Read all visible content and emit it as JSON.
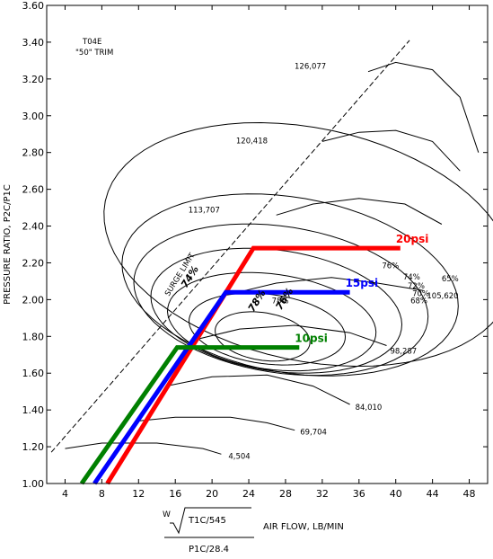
{
  "chart_data": {
    "type": "line",
    "title": "T04E",
    "subtitle": "\"50\" TRIM",
    "ylabel": "PRESSURE RATIO, P2C/P1C",
    "xlabel": "AIR FLOW, LB/MIN",
    "xlabel_formula": {
      "w": "W",
      "numerator": "T1C/545",
      "denominator": "P1C/28.4"
    },
    "xlim": [
      2,
      50
    ],
    "ylim": [
      1.0,
      3.6
    ],
    "x_ticks": [
      "4",
      "8",
      "12",
      "16",
      "20",
      "24",
      "28",
      "32",
      "36",
      "40",
      "44",
      "48"
    ],
    "y_ticks": [
      "1.00",
      "1.20",
      "1.40",
      "1.60",
      "1.80",
      "2.00",
      "2.20",
      "2.40",
      "2.60",
      "2.80",
      "3.00",
      "3.20",
      "3.40",
      "3.60"
    ],
    "surge_limit_label": "SURGE LIMIT",
    "surge_line": [
      [
        2.5,
        1.17
      ],
      [
        41.5,
        3.41
      ]
    ],
    "speed_lines": [
      {
        "name": "4,504",
        "points": [
          [
            4,
            1.19
          ],
          [
            8,
            1.22
          ],
          [
            14,
            1.22
          ],
          [
            19,
            1.19
          ],
          [
            21,
            1.16
          ]
        ]
      },
      {
        "name": "69,704",
        "points": [
          [
            12,
            1.34
          ],
          [
            16,
            1.36
          ],
          [
            22,
            1.36
          ],
          [
            26,
            1.33
          ],
          [
            29,
            1.29
          ]
        ]
      },
      {
        "name": "84,010",
        "points": [
          [
            15,
            1.53
          ],
          [
            20,
            1.58
          ],
          [
            26,
            1.59
          ],
          [
            31,
            1.53
          ],
          [
            35,
            1.43
          ]
        ]
      },
      {
        "name": "98,287",
        "points": [
          [
            18,
            1.78
          ],
          [
            23,
            1.84
          ],
          [
            29,
            1.86
          ],
          [
            35,
            1.82
          ],
          [
            39,
            1.75
          ]
        ]
      },
      {
        "name": "105,620",
        "points": [
          [
            22,
            2.03
          ],
          [
            27,
            2.09
          ],
          [
            33,
            2.12
          ],
          [
            38,
            2.09
          ],
          [
            43,
            2.05
          ]
        ]
      },
      {
        "name": "113,707",
        "points": [
          [
            27,
            2.46
          ],
          [
            31,
            2.52
          ],
          [
            36,
            2.55
          ],
          [
            41,
            2.52
          ],
          [
            45,
            2.41
          ]
        ]
      },
      {
        "name": "120,418",
        "points": [
          [
            32,
            2.86
          ],
          [
            36,
            2.91
          ],
          [
            40,
            2.92
          ],
          [
            44,
            2.86
          ],
          [
            47,
            2.7
          ]
        ]
      },
      {
        "name": "126,077",
        "points": [
          [
            37,
            3.24
          ],
          [
            40,
            3.29
          ],
          [
            44,
            3.25
          ],
          [
            47,
            3.1
          ],
          [
            49,
            2.8
          ]
        ]
      }
    ],
    "efficiency_islands": [
      "78%",
      "76%",
      "74%",
      "72%",
      "70%",
      "68%",
      "65%"
    ],
    "series": [
      {
        "name": "20psi",
        "color": "#ff0000",
        "points": [
          [
            8.6,
            1.0
          ],
          [
            24.5,
            2.28
          ],
          [
            40.5,
            2.28
          ]
        ]
      },
      {
        "name": "15psi",
        "color": "#0000ff",
        "points": [
          [
            7.2,
            1.0
          ],
          [
            21.5,
            2.04
          ],
          [
            35,
            2.04
          ]
        ]
      },
      {
        "name": "10psi",
        "color": "#008000",
        "points": [
          [
            5.8,
            1.0
          ],
          [
            16.2,
            1.74
          ],
          [
            29.5,
            1.74
          ]
        ]
      }
    ]
  }
}
